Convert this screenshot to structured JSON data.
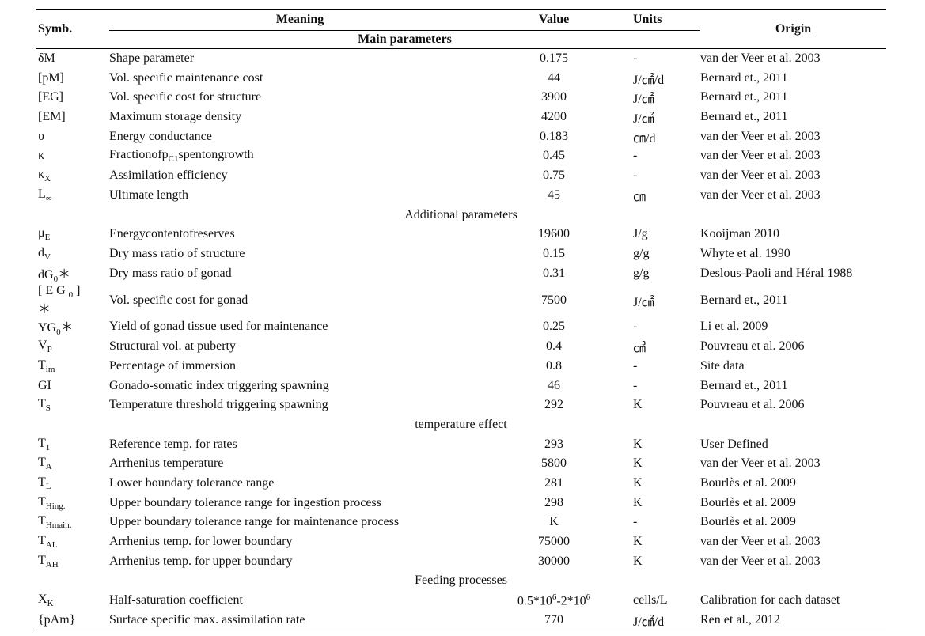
{
  "table": {
    "header": [
      "Symb.",
      "Meaning",
      "Value",
      "Units",
      "Origin"
    ],
    "sections": [
      {
        "title": "Main parameters",
        "rows": [
          {
            "symbol": "δM",
            "meaning": "Shape parameter",
            "value": 0.175,
            "units": "-",
            "origin": "van der Veer et al. 2003"
          },
          {
            "symbol": "[pM]",
            "meaning": "Vol. specific maintenance cost",
            "value": 44,
            "units": "J/㎠/d",
            "origin": "Bernard et., 2011"
          },
          {
            "symbol": "[EG]",
            "meaning": "Vol. specific cost for structure",
            "value": 3900,
            "units": "J/㎠",
            "origin": "Bernard et., 2011"
          },
          {
            "symbol": "[EM]",
            "meaning": "Maximum storage density",
            "value": 4200,
            "units": "J/㎠",
            "origin": "Bernard et., 2011"
          },
          {
            "symbol": "υ",
            "meaning": "Energy conductance",
            "value": 0.183,
            "units": "㎝/d",
            "origin": "van der Veer et al. 2003"
          },
          {
            "symbol": "κ",
            "meaning": [
              {
                "t": "Fractionofp"
              },
              {
                "sub": "C1"
              },
              {
                "t": "spentongrowth"
              }
            ],
            "value": 0.45,
            "units": "-",
            "origin": "van der Veer et al. 2003"
          },
          {
            "symbol": [
              {
                "t": "κ"
              },
              {
                "sub": "X"
              }
            ],
            "meaning": "Assimilation efficiency",
            "value": 0.75,
            "units": "-",
            "origin": "van der Veer et al. 2003"
          },
          {
            "symbol": [
              {
                "t": "L"
              },
              {
                "sub": "∞"
              }
            ],
            "meaning": "Ultimate length",
            "value": 45,
            "units": "㎝",
            "origin": "van der Veer et al. 2003"
          }
        ]
      },
      {
        "title": "Additional parameters",
        "rows": [
          {
            "symbol": [
              {
                "t": "μ"
              },
              {
                "sub": "E"
              }
            ],
            "meaning": "Energycontentofreserves",
            "value": 19600,
            "units": "J/g",
            "origin": "Kooijman 2010"
          },
          {
            "symbol": [
              {
                "t": "d"
              },
              {
                "sub": "V"
              }
            ],
            "meaning": "Dry mass ratio of structure",
            "value": 0.15,
            "units": "g/g",
            "origin": "Whyte et al. 1990"
          },
          {
            "symbol": [
              {
                "t": "dG"
              },
              {
                "sub": "0"
              },
              {
                "t": "＊"
              }
            ],
            "meaning": "Dry mass ratio of gonad",
            "value": 0.31,
            "units": "g/g",
            "origin": "Deslous-Paoli and Héral 1988"
          },
          {
            "symbol": [
              {
                "t": "[ E G "
              },
              {
                "sub": "0"
              },
              {
                "t": " ] ＊"
              }
            ],
            "meaning": "Vol. specific cost for gonad",
            "value": 7500,
            "units": "J/㎠",
            "origin": "Bernard et., 2011"
          },
          {
            "symbol": [
              {
                "t": "YG"
              },
              {
                "sub": "0"
              },
              {
                "t": "＊"
              }
            ],
            "meaning": "Yield of gonad tissue used for maintenance",
            "value": 0.25,
            "units": "-",
            "origin": "Li et al. 2009"
          },
          {
            "symbol": [
              {
                "t": "V"
              },
              {
                "sub": "P"
              }
            ],
            "meaning": "Structural vol. at puberty",
            "value": 0.4,
            "units": "㎤",
            "origin": "Pouvreau et al. 2006"
          },
          {
            "symbol": [
              {
                "t": "T"
              },
              {
                "sub": "im"
              }
            ],
            "meaning": "Percentage of immersion",
            "value": 0.8,
            "units": "-",
            "origin": "Site data"
          },
          {
            "symbol": "GI",
            "meaning": "Gonado-somatic index triggering spawning",
            "value": 46,
            "units": "-",
            "origin": "Bernard et., 2011"
          },
          {
            "symbol": [
              {
                "t": "T"
              },
              {
                "sub": "S"
              }
            ],
            "meaning": "Temperature threshold triggering spawning",
            "value": 292,
            "units": "K",
            "origin": "Pouvreau et al. 2006"
          }
        ]
      },
      {
        "title": "temperature effect",
        "rows": [
          {
            "symbol": [
              {
                "t": "T"
              },
              {
                "sub": "1"
              }
            ],
            "meaning": "Reference temp. for rates",
            "value": 293,
            "units": "K",
            "origin": "User Defined"
          },
          {
            "symbol": [
              {
                "t": "T"
              },
              {
                "sub": "A"
              }
            ],
            "meaning": "Arrhenius temperature",
            "value": 5800,
            "units": "K",
            "origin": "van der Veer et al. 2003"
          },
          {
            "symbol": [
              {
                "t": "T"
              },
              {
                "sub": "L"
              }
            ],
            "meaning": "Lower boundary tolerance range",
            "value": 281,
            "units": "K",
            "origin": "Bourlès et al. 2009"
          },
          {
            "symbol": [
              {
                "t": "T"
              },
              {
                "sub": "Hing."
              }
            ],
            "meaning": "Upper boundary tolerance range for ingestion process",
            "value": 298,
            "units": "K",
            "origin": "Bourlès et al. 2009"
          },
          {
            "symbol": [
              {
                "t": "T"
              },
              {
                "sub": "Hmain."
              }
            ],
            "meaning": "Upper boundary tolerance range for maintenance process",
            "value": "K",
            "units": "-",
            "origin": "Bourlès et al. 2009"
          },
          {
            "symbol": [
              {
                "t": "T"
              },
              {
                "sub": "AL"
              }
            ],
            "meaning": "Arrhenius temp. for lower boundary",
            "value": 75000,
            "units": "K",
            "origin": "van der Veer et al. 2003"
          },
          {
            "symbol": [
              {
                "t": "T"
              },
              {
                "sub": "AH"
              }
            ],
            "meaning": "Arrhenius temp. for upper boundary",
            "value": 30000,
            "units": "K",
            "origin": "van der Veer et al. 2003"
          }
        ]
      },
      {
        "title": "Feeding processes",
        "rows": [
          {
            "symbol": [
              {
                "t": "X"
              },
              {
                "sub": "K"
              }
            ],
            "meaning": "Half-saturation coefficient",
            "value": [
              {
                "t": "0.5*10"
              },
              {
                "sup": "6"
              },
              {
                "t": "-2*10"
              },
              {
                "sup": "6"
              }
            ],
            "units": "cells/L",
            "origin": "Calibration for each dataset"
          },
          {
            "symbol": "{pAm}",
            "meaning": "Surface specific max. assimilation rate",
            "value": 770,
            "units": "J/㎠/d",
            "origin": "Ren et al., 2012"
          }
        ]
      }
    ]
  }
}
